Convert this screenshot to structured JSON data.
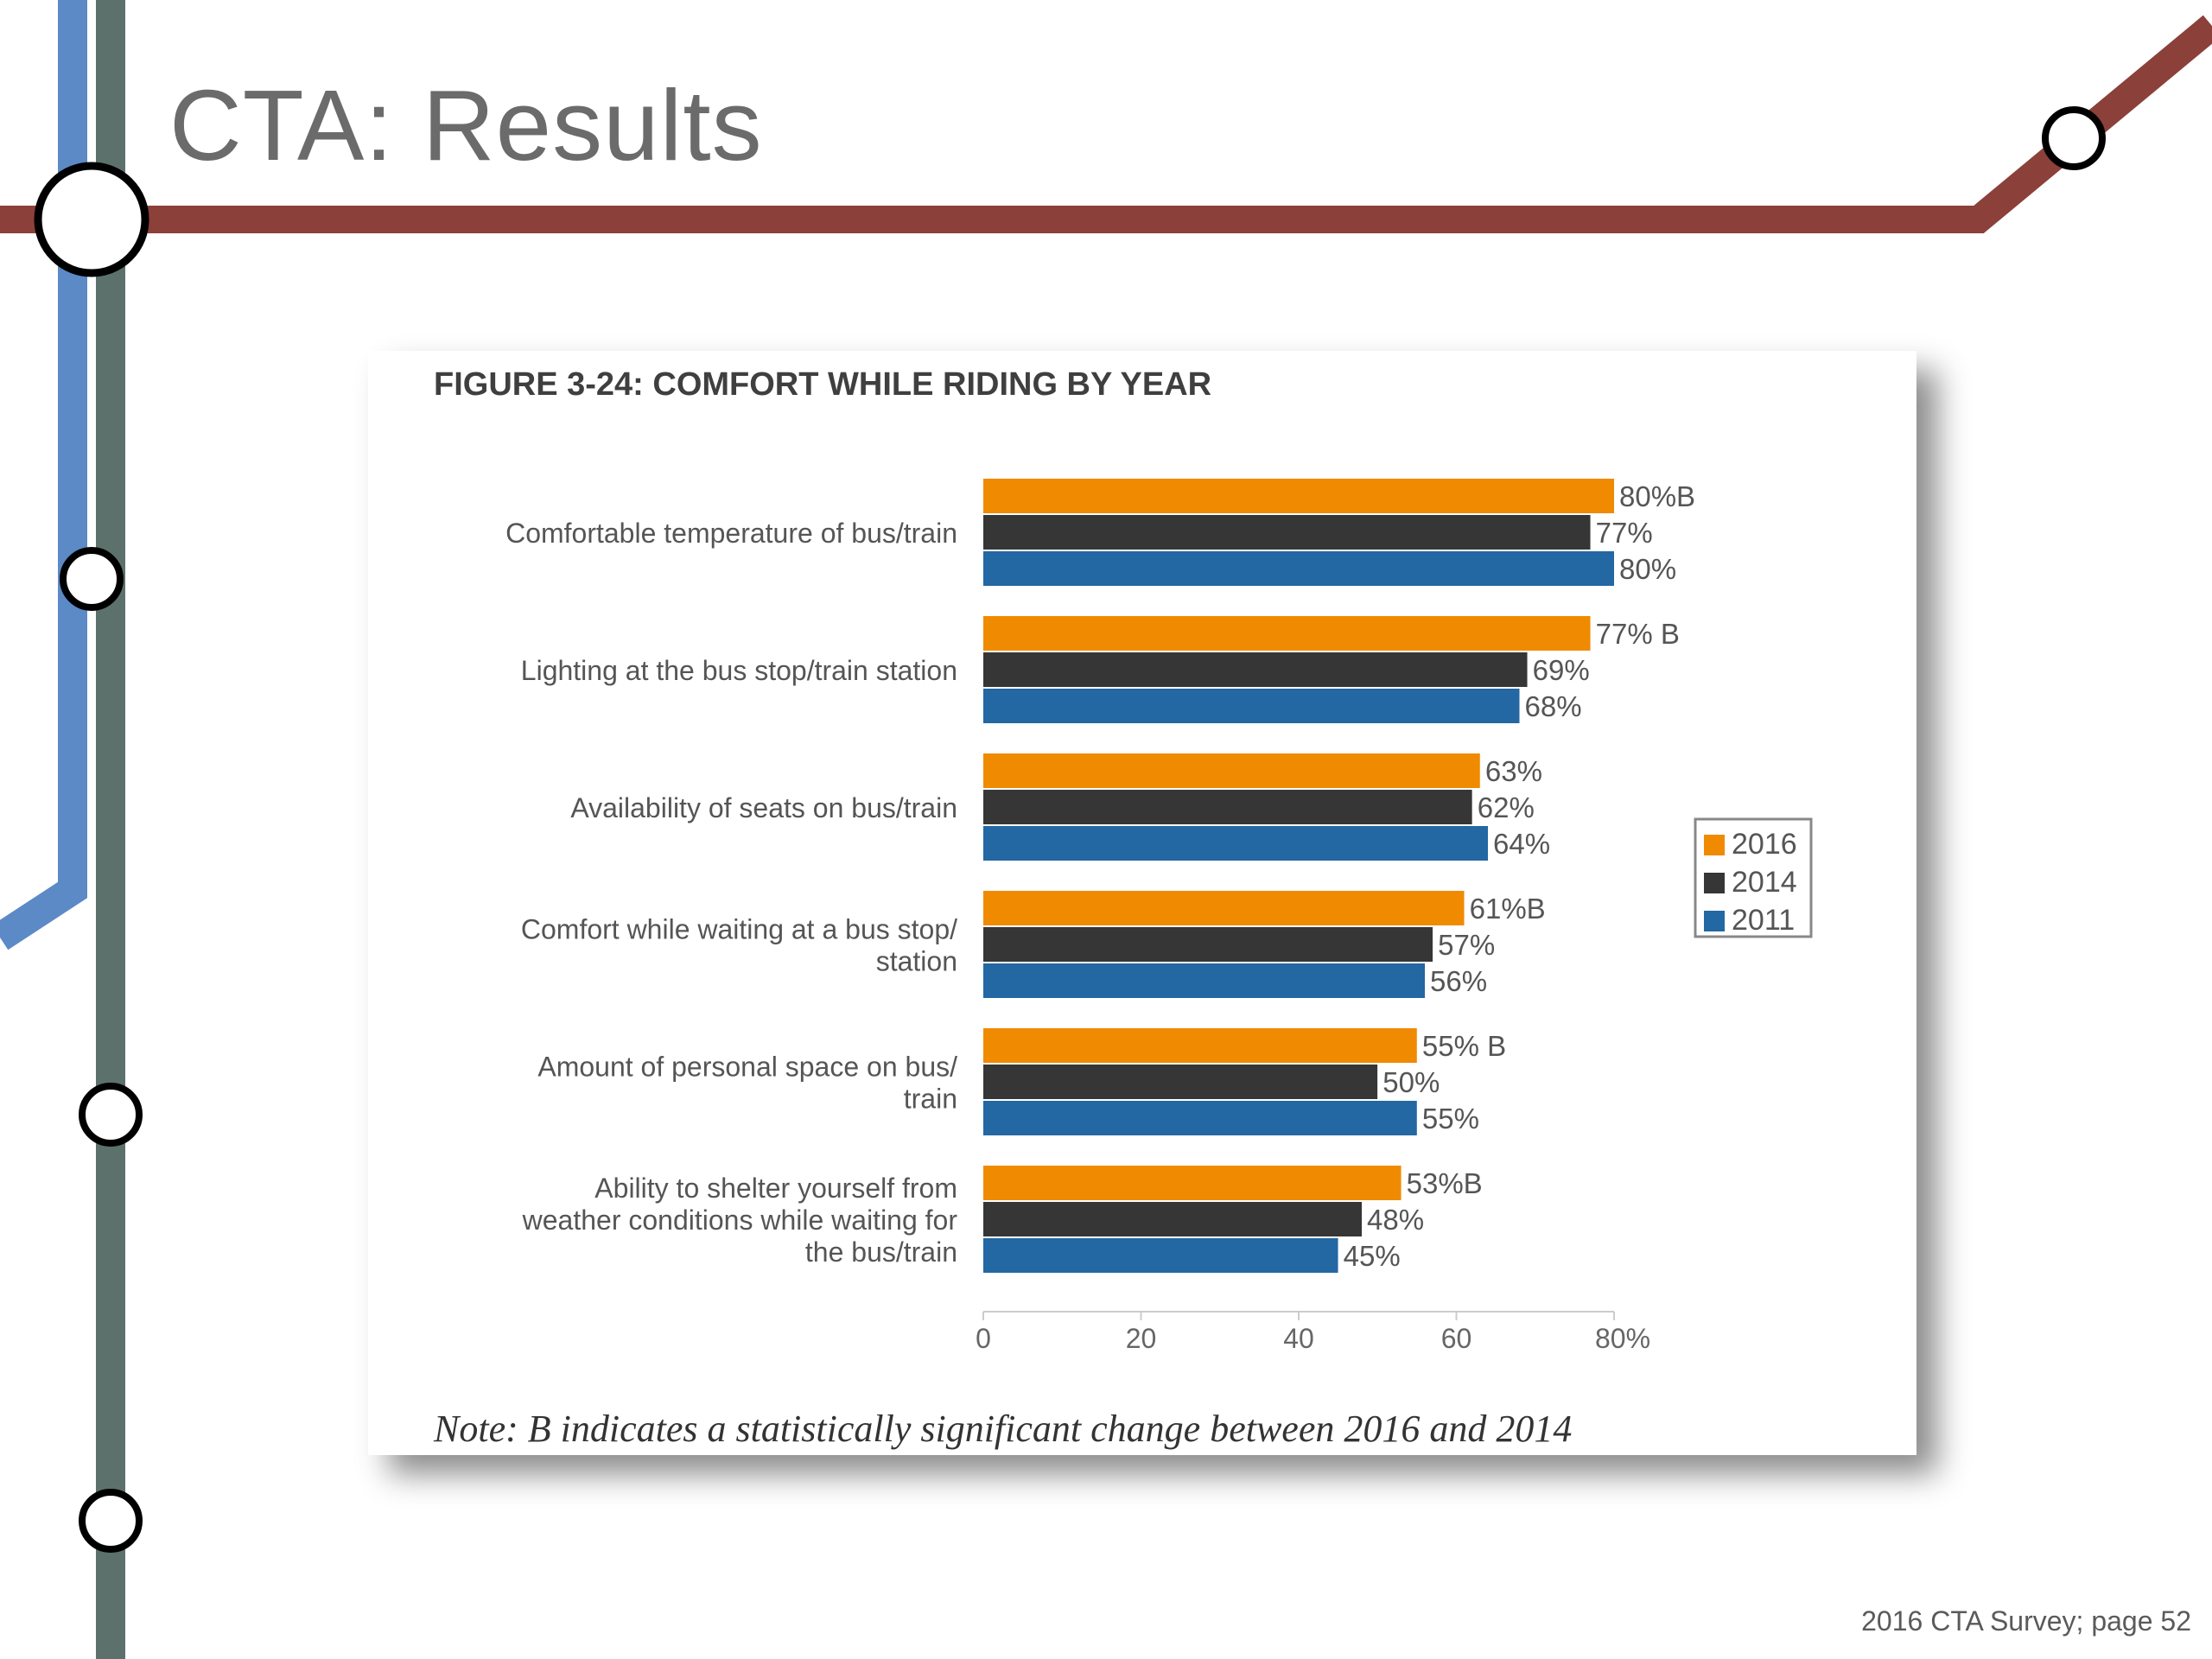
{
  "slide": {
    "title": "CTA: Results",
    "footer": "2016 CTA Survey; page 52"
  },
  "colors": {
    "line_red": "#8b4039",
    "line_blue": "#5b8ac6",
    "line_gray": "#5c716b",
    "orange": "#f08a00",
    "dark": "#363636",
    "blue": "#2367a3"
  },
  "figure": {
    "title": "FIGURE 3-24: COMFORT WHILE RIDING BY YEAR",
    "note": "Note: B indicates a statistically significant change between 2016 and 2014"
  },
  "chart_data": {
    "type": "bar",
    "orientation": "horizontal",
    "categories": [
      [
        "Comfortable temperature of bus/train"
      ],
      [
        "Lighting at the bus stop/train station"
      ],
      [
        "Availability of seats on bus/train"
      ],
      [
        "Comfort while waiting at a bus stop/",
        "station"
      ],
      [
        "Amount of personal space on bus/",
        "train"
      ],
      [
        "Ability to shelter yourself from",
        "weather conditions while waiting for",
        "the bus/train"
      ]
    ],
    "series": [
      {
        "name": "2016",
        "color": "#f08a00",
        "values": [
          80,
          77,
          63,
          61,
          55,
          53
        ],
        "labels": [
          "80%B",
          "77% B",
          "63%",
          "61%B",
          "55% B",
          "53%B"
        ]
      },
      {
        "name": "2014",
        "color": "#363636",
        "values": [
          77,
          69,
          62,
          57,
          50,
          48
        ],
        "labels": [
          "77%",
          "69%",
          "62%",
          "57%",
          "50%",
          "48%"
        ]
      },
      {
        "name": "2011",
        "color": "#2367a3",
        "values": [
          80,
          68,
          64,
          56,
          55,
          45
        ],
        "labels": [
          "80%",
          "68%",
          "64%",
          "56%",
          "55%",
          "45%"
        ]
      }
    ],
    "x_ticks": [
      "0",
      "20",
      "40",
      "60",
      "80%"
    ],
    "xlim": [
      0,
      80
    ],
    "legend_position": "right",
    "grid": false
  }
}
